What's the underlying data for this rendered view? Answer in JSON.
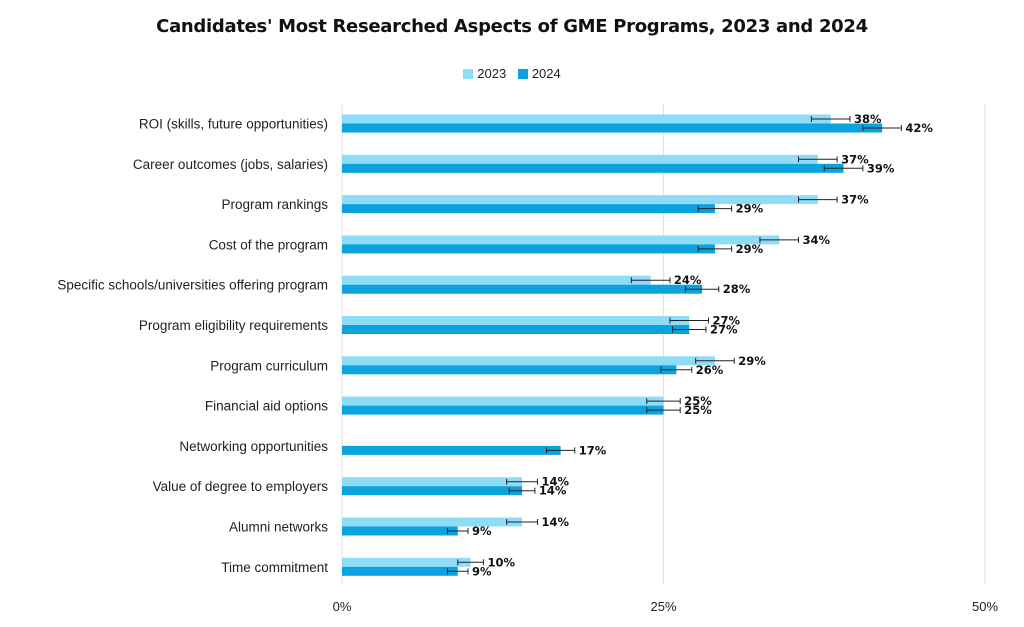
{
  "chart_data": {
    "type": "bar",
    "orientation": "horizontal",
    "title": "Candidates' Most Researched Aspects of GME Programs, 2023 and 2024",
    "xlabel": "",
    "ylabel": "",
    "xlim": [
      0,
      50
    ],
    "xticks": [
      0,
      25,
      50
    ],
    "xtick_labels": [
      "0%",
      "25%",
      "50%"
    ],
    "grid": true,
    "legend_position": "top-center",
    "error_bars": true,
    "categories": [
      "ROI (skills, future opportunities)",
      "Career outcomes (jobs, salaries)",
      "Program rankings",
      "Cost of the program",
      "Specific schools/universities offering program",
      "Program eligibility requirements",
      "Program curriculum",
      "Financial aid options",
      "Networking opportunities",
      "Value of degree to employers",
      "Alumni networks",
      "Time commitment"
    ],
    "series": [
      {
        "name": "2023",
        "color": "#8fdcf7",
        "values": [
          38,
          37,
          37,
          34,
          24,
          27,
          29,
          25,
          null,
          14,
          14,
          10
        ],
        "labels": [
          "38%",
          "37%",
          "37%",
          "34%",
          "24%",
          "27%",
          "29%",
          "25%",
          "",
          "14%",
          "14%",
          "10%"
        ],
        "error": [
          1.5,
          1.5,
          1.5,
          1.5,
          1.5,
          1.5,
          1.5,
          1.3,
          null,
          1.2,
          1.2,
          1.0
        ]
      },
      {
        "name": "2024",
        "color": "#0aa3de",
        "values": [
          42,
          39,
          29,
          29,
          28,
          27,
          26,
          25,
          17,
          14,
          9,
          9
        ],
        "labels": [
          "42%",
          "39%",
          "29%",
          "29%",
          "28%",
          "27%",
          "26%",
          "25%",
          "17%",
          "14%",
          "9%",
          "9%"
        ],
        "error": [
          1.5,
          1.5,
          1.3,
          1.3,
          1.3,
          1.3,
          1.2,
          1.3,
          1.1,
          1.0,
          0.8,
          0.8
        ]
      }
    ]
  }
}
